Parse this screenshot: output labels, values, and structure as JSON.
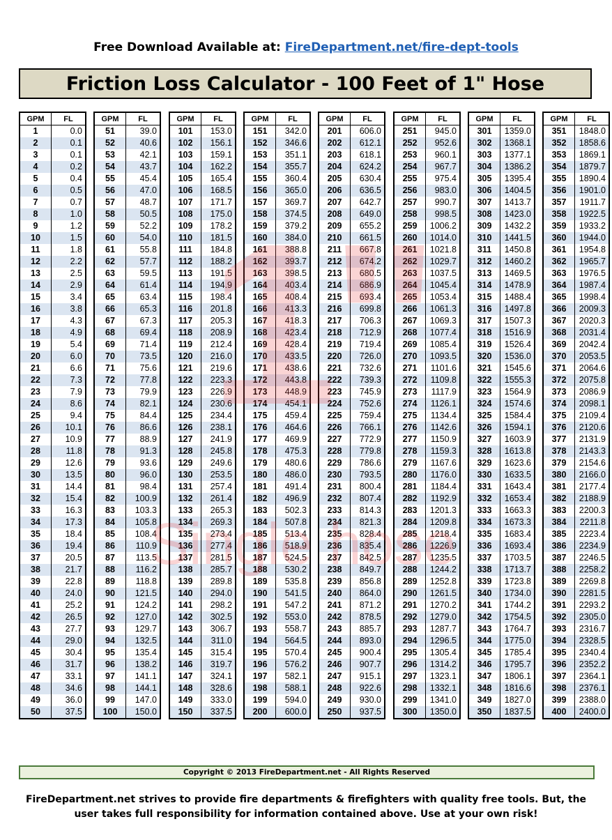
{
  "header": {
    "prefix": "Free Download Available at:",
    "link_text": "FireDepartment.net/fire-dept-tools"
  },
  "title": "Friction Loss Calculator - 100 Feet of 1\" Hose",
  "watermark": {
    "big": "1\"",
    "small": "Single hose"
  },
  "columns": {
    "gpm_header": "GPM",
    "fl_header": "FL"
  },
  "gpm_start": 1,
  "gpm_end": 400,
  "rows_per_column": 50,
  "fl_values": [
    "0.0",
    "0.1",
    "0.1",
    "0.2",
    "0.4",
    "0.5",
    "0.7",
    "1.0",
    "1.2",
    "1.5",
    "1.8",
    "2.2",
    "2.5",
    "2.9",
    "3.4",
    "3.8",
    "4.3",
    "4.9",
    "5.4",
    "6.0",
    "6.6",
    "7.3",
    "7.9",
    "8.6",
    "9.4",
    "10.1",
    "10.9",
    "11.8",
    "12.6",
    "13.5",
    "14.4",
    "15.4",
    "16.3",
    "17.3",
    "18.4",
    "19.4",
    "20.5",
    "21.7",
    "22.8",
    "24.0",
    "25.2",
    "26.5",
    "27.7",
    "29.0",
    "30.4",
    "31.7",
    "33.1",
    "34.6",
    "36.0",
    "37.5",
    "39.0",
    "40.6",
    "42.1",
    "43.7",
    "45.4",
    "47.0",
    "48.7",
    "50.5",
    "52.2",
    "54.0",
    "55.8",
    "57.7",
    "59.5",
    "61.4",
    "63.4",
    "65.3",
    "67.3",
    "69.4",
    "71.4",
    "73.5",
    "75.6",
    "77.8",
    "79.9",
    "82.1",
    "84.4",
    "86.6",
    "88.9",
    "91.3",
    "93.6",
    "96.0",
    "98.4",
    "100.9",
    "103.3",
    "105.8",
    "108.4",
    "110.9",
    "113.5",
    "116.2",
    "118.8",
    "121.5",
    "124.2",
    "127.0",
    "129.7",
    "132.5",
    "135.4",
    "138.2",
    "141.1",
    "144.1",
    "147.0",
    "150.0",
    "153.0",
    "156.1",
    "159.1",
    "162.2",
    "165.4",
    "168.5",
    "171.7",
    "175.0",
    "178.2",
    "181.5",
    "184.8",
    "188.2",
    "191.5",
    "194.9",
    "198.4",
    "201.8",
    "205.3",
    "208.9",
    "212.4",
    "216.0",
    "219.6",
    "223.3",
    "226.9",
    "230.6",
    "234.4",
    "238.1",
    "241.9",
    "245.8",
    "249.6",
    "253.5",
    "257.4",
    "261.4",
    "265.3",
    "269.3",
    "273.4",
    "277.4",
    "281.5",
    "285.7",
    "289.8",
    "294.0",
    "298.2",
    "302.5",
    "306.7",
    "311.0",
    "315.4",
    "319.7",
    "324.1",
    "328.6",
    "333.0",
    "337.5",
    "342.0",
    "346.6",
    "351.1",
    "355.7",
    "360.4",
    "365.0",
    "369.7",
    "374.5",
    "379.2",
    "384.0",
    "388.8",
    "393.7",
    "398.5",
    "403.4",
    "408.4",
    "413.3",
    "418.3",
    "423.4",
    "428.4",
    "433.5",
    "438.6",
    "443.8",
    "448.9",
    "454.1",
    "459.4",
    "464.6",
    "469.9",
    "475.3",
    "480.6",
    "486.0",
    "491.4",
    "496.9",
    "502.3",
    "507.8",
    "513.4",
    "518.9",
    "524.5",
    "530.2",
    "535.8",
    "541.5",
    "547.2",
    "553.0",
    "558.7",
    "564.5",
    "570.4",
    "576.2",
    "582.1",
    "588.1",
    "594.0",
    "600.0",
    "606.0",
    "612.1",
    "618.1",
    "624.2",
    "630.4",
    "636.5",
    "642.7",
    "649.0",
    "655.2",
    "661.5",
    "667.8",
    "674.2",
    "680.5",
    "686.9",
    "693.4",
    "699.8",
    "706.3",
    "712.9",
    "719.4",
    "726.0",
    "732.6",
    "739.3",
    "745.9",
    "752.6",
    "759.4",
    "766.1",
    "772.9",
    "779.8",
    "786.6",
    "793.5",
    "800.4",
    "807.4",
    "814.3",
    "821.3",
    "828.4",
    "835.4",
    "842.5",
    "849.7",
    "856.8",
    "864.0",
    "871.2",
    "878.5",
    "885.7",
    "893.0",
    "900.4",
    "907.7",
    "915.1",
    "922.6",
    "930.0",
    "937.5",
    "945.0",
    "952.6",
    "960.1",
    "967.7",
    "975.4",
    "983.0",
    "990.7",
    "998.5",
    "1006.2",
    "1014.0",
    "1021.8",
    "1029.7",
    "1037.5",
    "1045.4",
    "1053.4",
    "1061.3",
    "1069.3",
    "1077.4",
    "1085.4",
    "1093.5",
    "1101.6",
    "1109.8",
    "1117.9",
    "1126.1",
    "1134.4",
    "1142.6",
    "1150.9",
    "1159.3",
    "1167.6",
    "1176.0",
    "1184.4",
    "1192.9",
    "1201.3",
    "1209.8",
    "1218.4",
    "1226.9",
    "1235.5",
    "1244.2",
    "1252.8",
    "1261.5",
    "1270.2",
    "1279.0",
    "1287.7",
    "1296.5",
    "1305.4",
    "1314.2",
    "1323.1",
    "1332.1",
    "1341.0",
    "1350.0",
    "1359.0",
    "1368.1",
    "1377.1",
    "1386.2",
    "1395.4",
    "1404.5",
    "1413.7",
    "1423.0",
    "1432.2",
    "1441.5",
    "1450.8",
    "1460.2",
    "1469.5",
    "1478.9",
    "1488.4",
    "1497.8",
    "1507.3",
    "1516.9",
    "1526.4",
    "1536.0",
    "1545.6",
    "1555.3",
    "1564.9",
    "1574.6",
    "1584.4",
    "1594.1",
    "1603.9",
    "1613.8",
    "1623.6",
    "1633.5",
    "1643.4",
    "1653.4",
    "1663.3",
    "1673.3",
    "1683.4",
    "1693.4",
    "1703.5",
    "1713.7",
    "1723.8",
    "1734.0",
    "1744.2",
    "1754.5",
    "1764.7",
    "1775.0",
    "1785.4",
    "1795.7",
    "1806.1",
    "1816.6",
    "1827.0",
    "1837.5",
    "1848.0",
    "1858.6",
    "1869.1",
    "1879.7",
    "1890.4",
    "1901.0",
    "1911.7",
    "1922.5",
    "1933.2",
    "1944.0",
    "1954.8",
    "1965.7",
    "1976.5",
    "1987.4",
    "1998.4",
    "2009.3",
    "2020.3",
    "2031.4",
    "2042.4",
    "2053.5",
    "2064.6",
    "2075.8",
    "2086.9",
    "2098.1",
    "2109.4",
    "2120.6",
    "2131.9",
    "2143.3",
    "2154.6",
    "2166.0",
    "2177.4",
    "2188.9",
    "2200.3",
    "2211.8",
    "2223.4",
    "2234.9",
    "2246.5",
    "2258.2",
    "2269.8",
    "2281.5",
    "2293.2",
    "2305.0",
    "2316.7",
    "2328.5",
    "2340.4",
    "2352.2",
    "2364.1",
    "2376.1",
    "2388.0",
    "2400.0"
  ],
  "copyright": "Copyright © 2013 FireDepartment.net -  All Rights Reserved",
  "disclaimer": "FireDepartment.net strives to provide fire departments & firefighters with quality free tools.  But, the user takes full responsibility for information contained above.  Use at your own risk!"
}
